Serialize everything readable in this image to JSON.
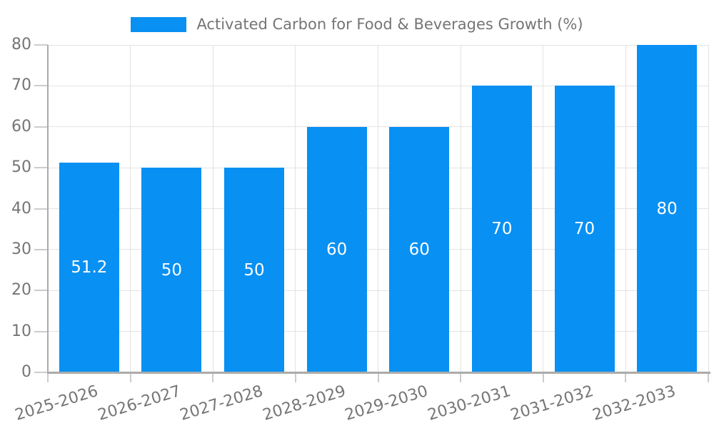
{
  "legend": {
    "label": "Activated Carbon for Food & Beverages Growth (%)"
  },
  "colors": {
    "bar": "#0890f3",
    "text": "#757575",
    "gridline": "#e3e3e3",
    "axis_line": "#ababab",
    "tick": "#cccccc",
    "bar_value_label": "#ffffff",
    "background": "#ffffff"
  },
  "chart_data": {
    "type": "bar",
    "title": "Activated Carbon for Food & Beverages Growth (%)",
    "legend_position": "top-center",
    "categories": [
      "2025-2026",
      "2026-2027",
      "2027-2028",
      "2028-2029",
      "2029-2030",
      "2030-2031",
      "2031-2032",
      "2032-2033"
    ],
    "values": [
      51.2,
      50,
      50,
      60,
      60,
      70,
      70,
      80
    ],
    "bar_value_labels": [
      "51.2",
      "50",
      "50",
      "60",
      "60",
      "70",
      "70",
      "80"
    ],
    "xlabel": "",
    "ylabel": "",
    "ylim": [
      0,
      80
    ],
    "yticks": [
      0,
      10,
      20,
      30,
      40,
      50,
      60,
      70,
      80
    ],
    "grid": true,
    "x_tick_rotation_deg": -17
  }
}
